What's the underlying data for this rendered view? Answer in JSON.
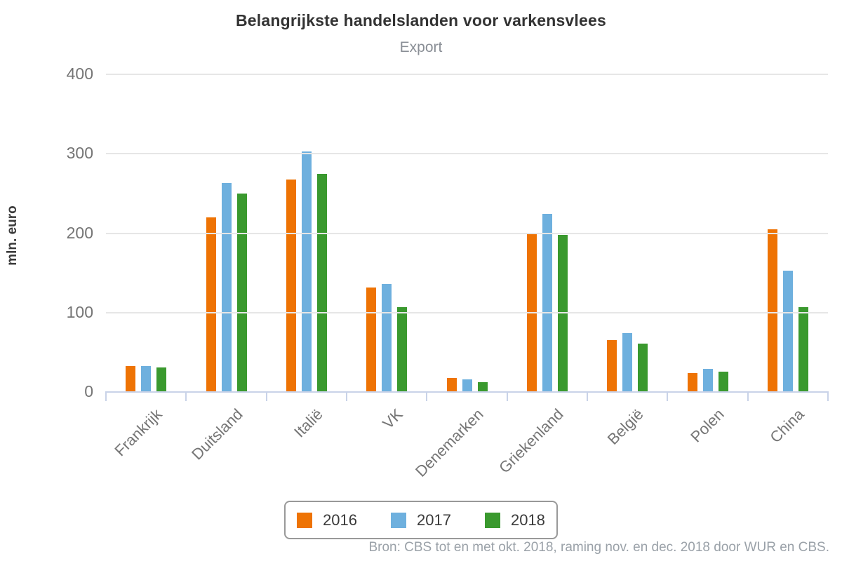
{
  "header": {
    "title": "Belangrijkste handelslanden voor varkensvlees",
    "subtitle": "Export"
  },
  "footer": {
    "source": "Bron: CBS tot en met okt. 2018, raming nov. en dec. 2018 door WUR en CBS."
  },
  "colors": {
    "series_2016": "#EE7304",
    "series_2017": "#6EB0DE",
    "series_2018": "#3A992E",
    "gridline": "#E6E6E6",
    "axis_line": "#C9D3E8",
    "tick_label": "#757575",
    "title_text": "#333333",
    "subtitle_text": "#8A8F96",
    "source_text": "#9AA1A8"
  },
  "chart_data": {
    "type": "bar",
    "title": "Belangrijkste handelslanden voor varkensvlees",
    "subtitle": "Export",
    "xlabel": "",
    "ylabel": "mln. euro",
    "ylim": [
      0,
      410
    ],
    "yticks": [
      0,
      100,
      200,
      300,
      400
    ],
    "grid": true,
    "legend_position": "bottom",
    "categories": [
      "Frankrijk",
      "Duitsland",
      "Italië",
      "VK",
      "Denemarken",
      "Griekenland",
      "België",
      "Polen",
      "China"
    ],
    "series": [
      {
        "name": "2016",
        "color": "#EE7304",
        "values": [
          33,
          220,
          268,
          132,
          18,
          200,
          65,
          24,
          205
        ]
      },
      {
        "name": "2017",
        "color": "#6EB0DE",
        "values": [
          33,
          263,
          303,
          136,
          16,
          224,
          74,
          29,
          153
        ]
      },
      {
        "name": "2018",
        "color": "#3A992E",
        "values": [
          31,
          250,
          275,
          107,
          12,
          198,
          61,
          26,
          107
        ]
      }
    ]
  }
}
